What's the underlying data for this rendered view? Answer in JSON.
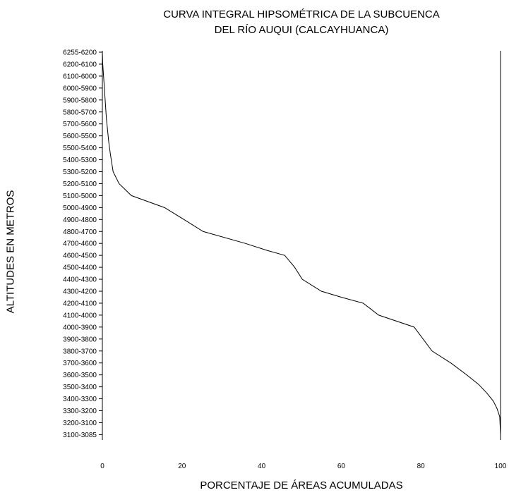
{
  "chart_data": {
    "type": "line",
    "title": "CURVA INTEGRAL HIPSOMÉTRICA DE LA SUBCUENCA",
    "subtitle": "DEL RÍO AUQUI (CALCAYHUANCA)",
    "xlabel": "PORCENTAJE DE ÁREAS ACUMULADAS",
    "ylabel": "ALTITUDES EN METROS",
    "xlim": [
      0,
      100
    ],
    "x_ticks": [
      0,
      20,
      40,
      60,
      80,
      100
    ],
    "y_categories": [
      "6255-6200",
      "6200-6100",
      "6100-6000",
      "6000-5900",
      "5900-5800",
      "5800-5700",
      "5700-5600",
      "5600-5500",
      "5500-5400",
      "5400-5300",
      "5300-5200",
      "5200-5100",
      "5100-5000",
      "5000-4900",
      "4900-4800",
      "4800-4700",
      "4700-4600",
      "4600-4500",
      "4500-4400",
      "4400-4300",
      "4300-4200",
      "4200-4100",
      "4100-4000",
      "4000-3900",
      "3900-3800",
      "3800-3700",
      "3700-3600",
      "3600-3500",
      "3500-3400",
      "3400-3300",
      "3300-3200",
      "3200-3100",
      "3100-3085"
    ],
    "grid": false,
    "series": [
      {
        "x": [
          0,
          0.1,
          0.2,
          0.4,
          0.6,
          0.8,
          1.0,
          1.3,
          1.6,
          2.0,
          2.7,
          4.2,
          7.3,
          15.6,
          20.5,
          25.3,
          35.9,
          41.5,
          45.8,
          48.3,
          50.2,
          55.0,
          60.0,
          65.5,
          69.4,
          78.3,
          82.8,
          87.5,
          91.5,
          94.5,
          96.5,
          98.2,
          99.1,
          99.8,
          100
        ],
        "y": [
          6200,
          6100,
          6050,
          5950,
          5850,
          5750,
          5650,
          5550,
          5450,
          5350,
          5200,
          5100,
          5000,
          4900,
          4800,
          4700,
          4600,
          4540,
          4500,
          4400,
          4300,
          4200,
          4150,
          4100,
          4000,
          3900,
          3700,
          3600,
          3500,
          3420,
          3350,
          3280,
          3220,
          3150,
          3085
        ]
      }
    ]
  }
}
